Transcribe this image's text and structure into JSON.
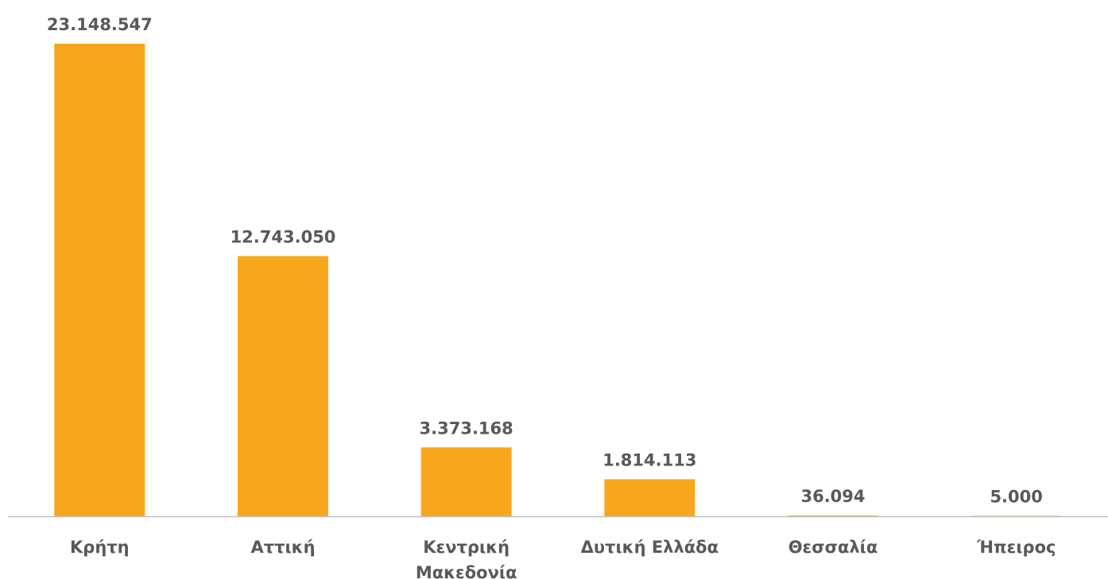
{
  "chart_data": {
    "type": "bar",
    "categories": [
      [
        "Κρήτη"
      ],
      [
        "Αττική"
      ],
      [
        "Κεντρική",
        "Μακεδονία"
      ],
      [
        "Δυτική Ελλάδα"
      ],
      [
        "Θεσσαλία"
      ],
      [
        "Ήπειρος"
      ]
    ],
    "values": [
      23148547,
      12743050,
      3373168,
      1814113,
      36094,
      5000
    ],
    "value_labels": [
      "23.148.547",
      "12.743.050",
      "3.373.168",
      "1.814.113",
      "36.094",
      "5.000"
    ],
    "ylim": [
      0,
      23148547
    ],
    "grid": false,
    "legend": "none",
    "colors": {
      "bar": "#F7A71D",
      "axis": "#BFBFBF",
      "text": "#595959"
    }
  }
}
